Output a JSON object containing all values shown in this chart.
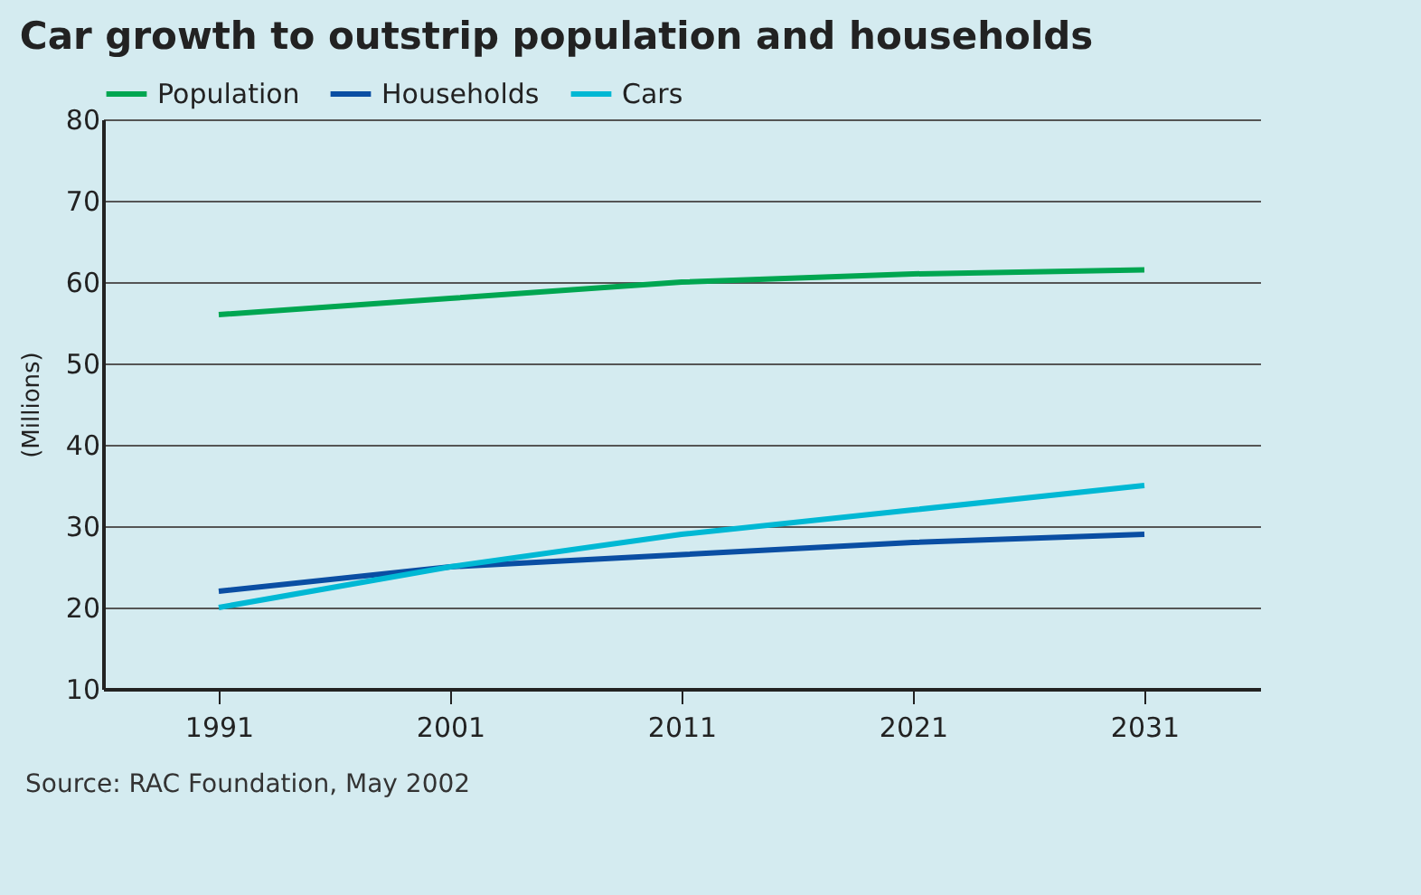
{
  "chart_data": {
    "type": "line",
    "title": "Car growth to outstrip population and households",
    "ylabel": "(Millions)",
    "x": [
      1991,
      2001,
      2011,
      2021,
      2031
    ],
    "xlim": [
      1986,
      2036
    ],
    "xticks": [
      1991,
      2001,
      2011,
      2021,
      2031
    ],
    "ylim": [
      10,
      80
    ],
    "yticks": [
      10,
      20,
      30,
      40,
      50,
      60,
      70,
      80
    ],
    "grid": "y",
    "legend": "top left",
    "marker": "none",
    "line_style": "solid",
    "series": [
      {
        "name": "Population",
        "color": "#00a651",
        "values": [
          56,
          58,
          60,
          61,
          61.5
        ]
      },
      {
        "name": "Households",
        "color": "#0a4ea3",
        "values": [
          22,
          25,
          26.5,
          28,
          29
        ]
      },
      {
        "name": "Cars",
        "color": "#00b8d4",
        "values": [
          20,
          25,
          29,
          32,
          35
        ]
      }
    ],
    "annotations": [
      "Source: RAC Foundation, May 2002"
    ]
  }
}
